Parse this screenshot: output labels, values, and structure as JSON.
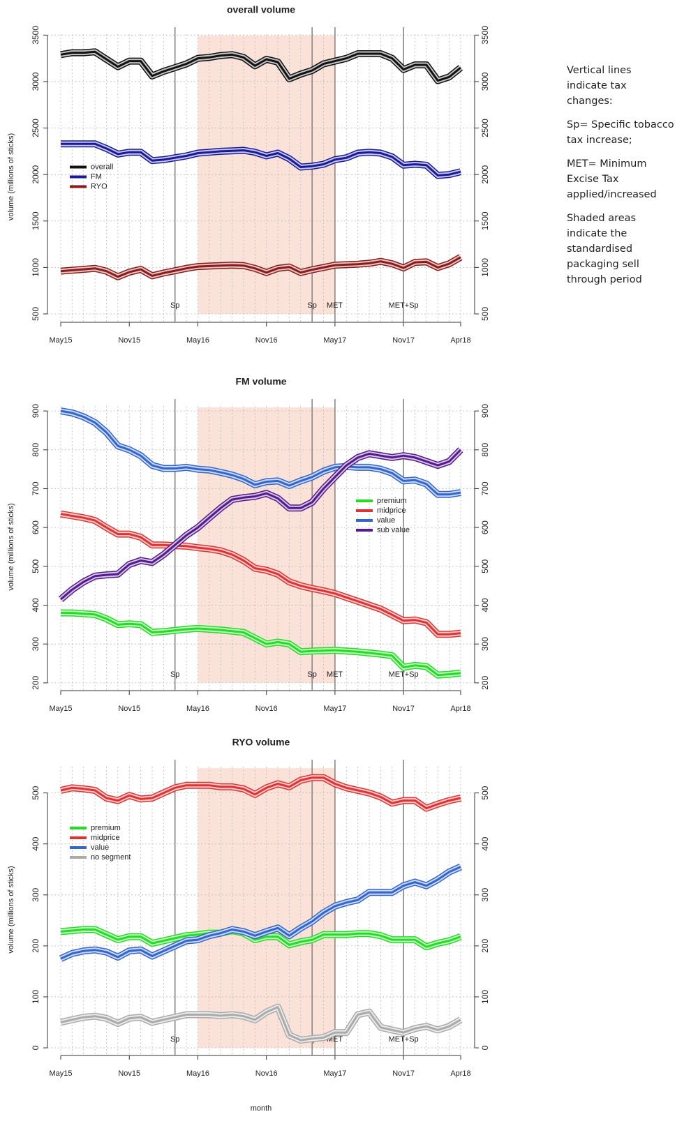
{
  "chart_data": [
    {
      "type": "line",
      "title": "overall volume",
      "ylabel": "volume (millions of sticks)",
      "categories": [
        "May15",
        null,
        null,
        null,
        null,
        null,
        "Nov15",
        null,
        null,
        null,
        null,
        null,
        "May16",
        null,
        null,
        null,
        null,
        null,
        "Nov16",
        null,
        null,
        null,
        null,
        null,
        "May17",
        null,
        null,
        null,
        null,
        null,
        "Nov17",
        null,
        null,
        null,
        null,
        "Apr18"
      ],
      "series": [
        {
          "name": "overall",
          "color": "#111111",
          "values": [
            3290,
            3310,
            3310,
            3320,
            3240,
            3160,
            3220,
            3220,
            3060,
            3110,
            3150,
            3190,
            3250,
            3260,
            3280,
            3290,
            3260,
            3170,
            3240,
            3210,
            3030,
            3080,
            3120,
            3190,
            3220,
            3250,
            3300,
            3300,
            3300,
            3250,
            3130,
            3180,
            3180,
            3010,
            3050,
            3150
          ]
        },
        {
          "name": "FM",
          "color": "#1a1a99",
          "values": [
            2330,
            2330,
            2330,
            2330,
            2280,
            2220,
            2240,
            2240,
            2150,
            2160,
            2180,
            2200,
            2230,
            2240,
            2250,
            2255,
            2260,
            2240,
            2200,
            2230,
            2170,
            2080,
            2090,
            2110,
            2160,
            2180,
            2230,
            2240,
            2230,
            2190,
            2100,
            2110,
            2100,
            1990,
            2000,
            2030
          ]
        },
        {
          "name": "RYO",
          "color": "#8b1a1a",
          "values": [
            960,
            970,
            980,
            990,
            960,
            900,
            950,
            980,
            910,
            940,
            965,
            990,
            1010,
            1015,
            1020,
            1025,
            1020,
            990,
            945,
            990,
            1005,
            945,
            975,
            1000,
            1025,
            1030,
            1035,
            1045,
            1065,
            1040,
            995,
            1055,
            1060,
            1000,
            1040,
            1110
          ]
        }
      ],
      "ylim": [
        410,
        3540
      ],
      "yticks": [
        500,
        1000,
        1500,
        2000,
        2500,
        3000,
        3500
      ],
      "grid": true,
      "legend": "center left",
      "events": [
        {
          "at": 10,
          "label": "Sp"
        },
        {
          "at": 22,
          "label": "Sp"
        },
        {
          "at": 24,
          "label": "MET"
        },
        {
          "at": 30,
          "label": "MET+Sp"
        }
      ],
      "shade": [
        12,
        24
      ]
    },
    {
      "type": "line",
      "title": "FM volume",
      "ylabel": "volume (millions of sticks)",
      "categories": [
        "May15",
        null,
        null,
        null,
        null,
        null,
        "Nov15",
        null,
        null,
        null,
        null,
        null,
        "May16",
        null,
        null,
        null,
        null,
        null,
        "Nov16",
        null,
        null,
        null,
        null,
        null,
        "May17",
        null,
        null,
        null,
        null,
        null,
        "Nov17",
        null,
        null,
        null,
        null,
        "Apr18"
      ],
      "series": [
        {
          "name": "premium",
          "color": "#22dd22",
          "values": [
            380,
            380,
            378,
            376,
            365,
            350,
            352,
            350,
            330,
            332,
            335,
            338,
            340,
            338,
            336,
            333,
            330,
            315,
            300,
            305,
            300,
            280,
            282,
            283,
            284,
            282,
            280,
            277,
            274,
            270,
            240,
            245,
            242,
            220,
            222,
            225
          ]
        },
        {
          "name": "midprice",
          "color": "#dd3333",
          "values": [
            635,
            630,
            625,
            618,
            600,
            583,
            583,
            575,
            555,
            555,
            553,
            552,
            548,
            545,
            540,
            530,
            515,
            495,
            490,
            480,
            460,
            450,
            443,
            437,
            430,
            420,
            410,
            400,
            390,
            375,
            360,
            362,
            355,
            325,
            325,
            328
          ]
        },
        {
          "name": "value",
          "color": "#3366cc",
          "values": [
            900,
            895,
            885,
            870,
            845,
            810,
            800,
            785,
            760,
            752,
            752,
            755,
            750,
            748,
            742,
            735,
            725,
            710,
            718,
            720,
            708,
            720,
            730,
            745,
            755,
            757,
            755,
            755,
            750,
            740,
            720,
            722,
            712,
            685,
            685,
            690
          ]
        },
        {
          "name": "sub value",
          "color": "#551a8b",
          "values": [
            415,
            440,
            460,
            475,
            478,
            480,
            505,
            515,
            510,
            530,
            555,
            580,
            600,
            625,
            650,
            672,
            677,
            680,
            688,
            675,
            650,
            650,
            665,
            700,
            730,
            760,
            780,
            790,
            785,
            780,
            785,
            780,
            770,
            760,
            770,
            800
          ]
        }
      ],
      "ylim": [
        180,
        920
      ],
      "yticks": [
        200,
        300,
        400,
        500,
        600,
        700,
        800,
        900
      ],
      "grid": true,
      "legend": "center right",
      "events": [
        {
          "at": 10,
          "label": "Sp"
        },
        {
          "at": 22,
          "label": "Sp"
        },
        {
          "at": 24,
          "label": "MET"
        },
        {
          "at": 30,
          "label": "MET+Sp"
        }
      ],
      "shade": [
        12,
        24
      ]
    },
    {
      "type": "line",
      "title": "RYO volume",
      "ylabel": "volume (millions of sticks)",
      "xlabel": "month",
      "categories": [
        "May15",
        null,
        null,
        null,
        null,
        null,
        "Nov15",
        null,
        null,
        null,
        null,
        null,
        "May16",
        null,
        null,
        null,
        null,
        null,
        "Nov16",
        null,
        null,
        null,
        null,
        null,
        "May17",
        null,
        null,
        null,
        null,
        null,
        "Nov17",
        null,
        null,
        null,
        null,
        "Apr18"
      ],
      "series": [
        {
          "name": "premium",
          "color": "#22dd22",
          "values": [
            228,
            230,
            232,
            232,
            222,
            212,
            218,
            218,
            205,
            210,
            215,
            220,
            222,
            225,
            225,
            230,
            225,
            212,
            218,
            218,
            202,
            208,
            212,
            222,
            222,
            222,
            224,
            224,
            220,
            212,
            212,
            212,
            198,
            205,
            210,
            218
          ]
        },
        {
          "name": "midprice",
          "color": "#dd3333",
          "values": [
            505,
            510,
            508,
            505,
            490,
            485,
            495,
            488,
            490,
            500,
            510,
            515,
            515,
            515,
            512,
            512,
            508,
            497,
            510,
            518,
            512,
            525,
            530,
            530,
            518,
            510,
            505,
            500,
            492,
            480,
            485,
            485,
            470,
            478,
            485,
            490
          ]
        },
        {
          "name": "value",
          "color": "#3366cc",
          "values": [
            175,
            185,
            190,
            192,
            188,
            178,
            190,
            192,
            180,
            190,
            200,
            210,
            212,
            220,
            225,
            232,
            228,
            220,
            228,
            235,
            220,
            235,
            248,
            265,
            278,
            285,
            290,
            305,
            305,
            305,
            318,
            325,
            318,
            330,
            345,
            355
          ]
        },
        {
          "name": "no segment",
          "color": "#aaaaaa",
          "values": [
            50,
            55,
            60,
            62,
            58,
            48,
            58,
            60,
            50,
            55,
            60,
            65,
            65,
            65,
            63,
            65,
            62,
            55,
            70,
            80,
            25,
            15,
            18,
            20,
            30,
            30,
            65,
            70,
            40,
            35,
            30,
            38,
            42,
            35,
            42,
            55
          ]
        }
      ],
      "ylim": [
        -15,
        557
      ],
      "yticks": [
        0,
        100,
        200,
        300,
        400,
        500
      ],
      "grid": true,
      "legend": "upper left",
      "events": [
        {
          "at": 10,
          "label": "Sp"
        },
        {
          "at": 22,
          "label": "Sp"
        },
        {
          "at": 24,
          "label": "MET"
        },
        {
          "at": 30,
          "label": "MET+Sp"
        }
      ],
      "shade": [
        12,
        24
      ]
    }
  ],
  "notes": [
    [
      "Vertical lines",
      "indicate tax",
      "changes:"
    ],
    [
      "Sp= Specific tobacco",
      "tax increase;"
    ],
    [
      "MET= Minimum",
      "Excise Tax",
      "applied/increased"
    ],
    [
      "Shaded areas",
      "indicate the",
      "standardised",
      "packaging sell",
      "through period"
    ]
  ]
}
